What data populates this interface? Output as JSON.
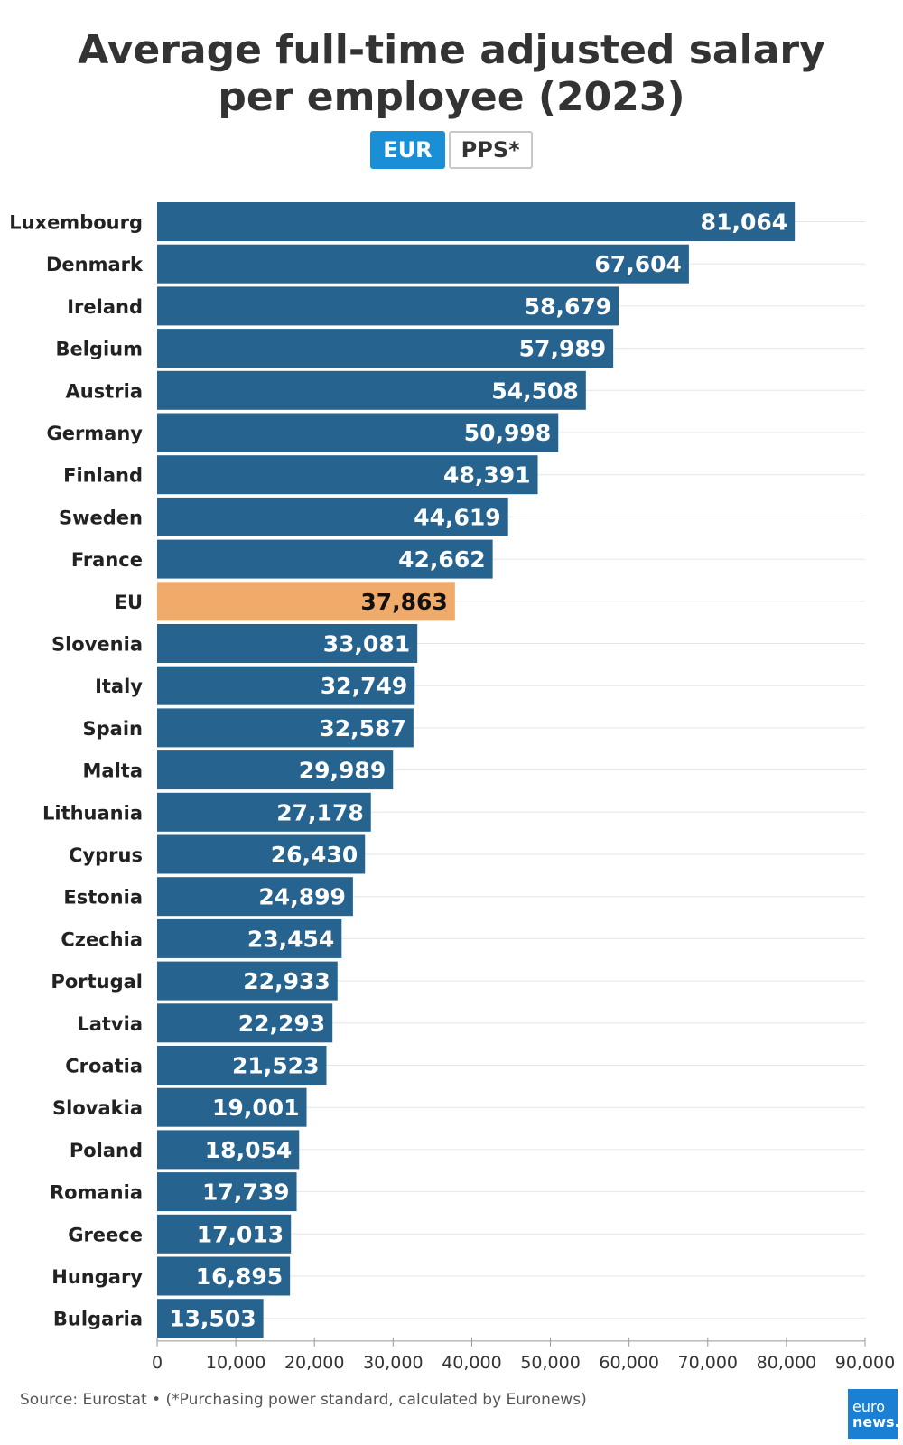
{
  "title": "Average full-time adjusted salary per employee (2023)",
  "toggle": {
    "options": [
      "EUR",
      "PPS*"
    ],
    "selected": "EUR"
  },
  "chart_data": {
    "type": "bar",
    "orientation": "horizontal",
    "title": "Average full-time adjusted salary per employee (2023)",
    "categories": [
      "Luxembourg",
      "Denmark",
      "Ireland",
      "Belgium",
      "Austria",
      "Germany",
      "Finland",
      "Sweden",
      "France",
      "EU",
      "Slovenia",
      "Italy",
      "Spain",
      "Malta",
      "Lithuania",
      "Cyprus",
      "Estonia",
      "Czechia",
      "Portugal",
      "Latvia",
      "Croatia",
      "Slovakia",
      "Poland",
      "Romania",
      "Greece",
      "Hungary",
      "Bulgaria"
    ],
    "values": [
      81064,
      67604,
      58679,
      57989,
      54508,
      50998,
      48391,
      44619,
      42662,
      37863,
      33081,
      32749,
      32587,
      29989,
      27178,
      26430,
      24899,
      23454,
      22933,
      22293,
      21523,
      19001,
      18054,
      17739,
      17013,
      16895,
      13503
    ],
    "value_labels": [
      "81,064",
      "67,604",
      "58,679",
      "57,989",
      "54,508",
      "50,998",
      "48,391",
      "44,619",
      "42,662",
      "37,863",
      "33,081",
      "32,749",
      "32,587",
      "29,989",
      "27,178",
      "26,430",
      "24,899",
      "23,454",
      "22,933",
      "22,293",
      "21,523",
      "19,001",
      "18,054",
      "17,739",
      "17,013",
      "16,895",
      "13,503"
    ],
    "highlight_category": "EU",
    "xlim": [
      0,
      90000
    ],
    "xticks": [
      0,
      10000,
      20000,
      30000,
      40000,
      50000,
      60000,
      70000,
      80000,
      90000
    ],
    "xtick_labels": [
      "0",
      "10,000",
      "20,000",
      "30,000",
      "40,000",
      "50,000",
      "60,000",
      "70,000",
      "80,000",
      "90,000"
    ],
    "xlabel": "",
    "ylabel": "",
    "grid": true,
    "colors": {
      "bar": "#26638f",
      "highlight": "#f0aa6a",
      "label_on_bar": "#ffffff",
      "label_on_highlight": "#111111",
      "grid": "#e6e6e6"
    }
  },
  "source": "Source: Eurostat • (*Purchasing power standard, calculated by Euronews)",
  "logo": {
    "line1": "euro",
    "line2": "news."
  }
}
